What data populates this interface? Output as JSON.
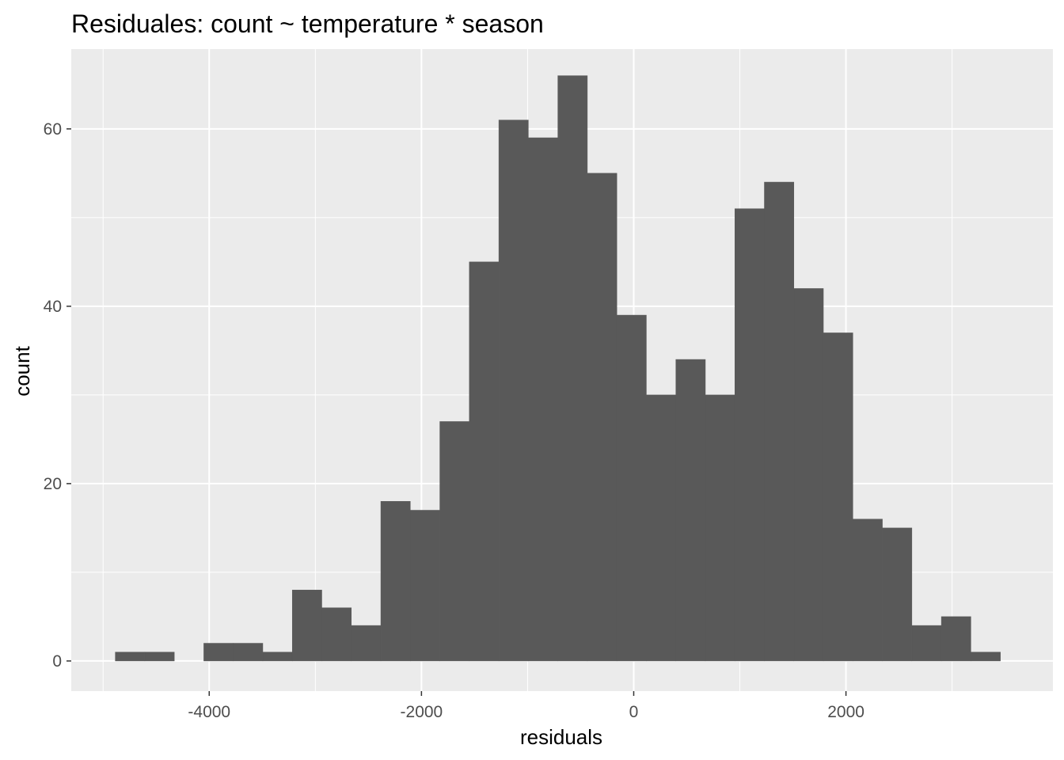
{
  "chart_data": {
    "type": "histogram",
    "title": "Residuales:  count ~ temperature * season",
    "xlabel": "residuals",
    "ylabel": "count",
    "xlim": [
      -5300,
      3950
    ],
    "ylim": [
      -3.4,
      69
    ],
    "x_ticks": [
      -4000,
      -2000,
      0,
      2000
    ],
    "x_tick_labels": [
      "-4000",
      "-2000",
      "0",
      "2000"
    ],
    "y_ticks": [
      0,
      20,
      40,
      60
    ],
    "y_tick_labels": [
      "0",
      "20",
      "40",
      "60"
    ],
    "grid": true,
    "bin_width": 278,
    "bins": [
      {
        "x0": -4885,
        "x1": -4607,
        "count": 1
      },
      {
        "x0": -4607,
        "x1": -4329,
        "count": 1
      },
      {
        "x0": -4329,
        "x1": -4051,
        "count": 0
      },
      {
        "x0": -4051,
        "x1": -3773,
        "count": 2
      },
      {
        "x0": -3773,
        "x1": -3495,
        "count": 2
      },
      {
        "x0": -3495,
        "x1": -3217,
        "count": 1
      },
      {
        "x0": -3217,
        "x1": -2939,
        "count": 8
      },
      {
        "x0": -2939,
        "x1": -2661,
        "count": 6
      },
      {
        "x0": -2661,
        "x1": -2383,
        "count": 4
      },
      {
        "x0": -2383,
        "x1": -2105,
        "count": 18
      },
      {
        "x0": -2105,
        "x1": -1827,
        "count": 17
      },
      {
        "x0": -1827,
        "x1": -1549,
        "count": 27
      },
      {
        "x0": -1549,
        "x1": -1271,
        "count": 45
      },
      {
        "x0": -1271,
        "x1": -993,
        "count": 61
      },
      {
        "x0": -993,
        "x1": -715,
        "count": 59
      },
      {
        "x0": -715,
        "x1": -437,
        "count": 66
      },
      {
        "x0": -437,
        "x1": -159,
        "count": 55
      },
      {
        "x0": -159,
        "x1": 119,
        "count": 39
      },
      {
        "x0": 119,
        "x1": 397,
        "count": 30
      },
      {
        "x0": 397,
        "x1": 675,
        "count": 34
      },
      {
        "x0": 675,
        "x1": 953,
        "count": 30
      },
      {
        "x0": 953,
        "x1": 1231,
        "count": 51
      },
      {
        "x0": 1231,
        "x1": 1509,
        "count": 54
      },
      {
        "x0": 1509,
        "x1": 1787,
        "count": 42
      },
      {
        "x0": 1787,
        "x1": 2065,
        "count": 37
      },
      {
        "x0": 2065,
        "x1": 2343,
        "count": 16
      },
      {
        "x0": 2343,
        "x1": 2621,
        "count": 15
      },
      {
        "x0": 2621,
        "x1": 2899,
        "count": 4
      },
      {
        "x0": 2899,
        "x1": 3177,
        "count": 5
      },
      {
        "x0": 3177,
        "x1": 3455,
        "count": 1
      }
    ],
    "colors": {
      "panel_background": "#ebebeb",
      "grid_major": "#ffffff",
      "bar_fill": "#595959",
      "tick_text": "#4d4d4d",
      "tick_mark": "#333333",
      "title_text": "#000000"
    }
  }
}
